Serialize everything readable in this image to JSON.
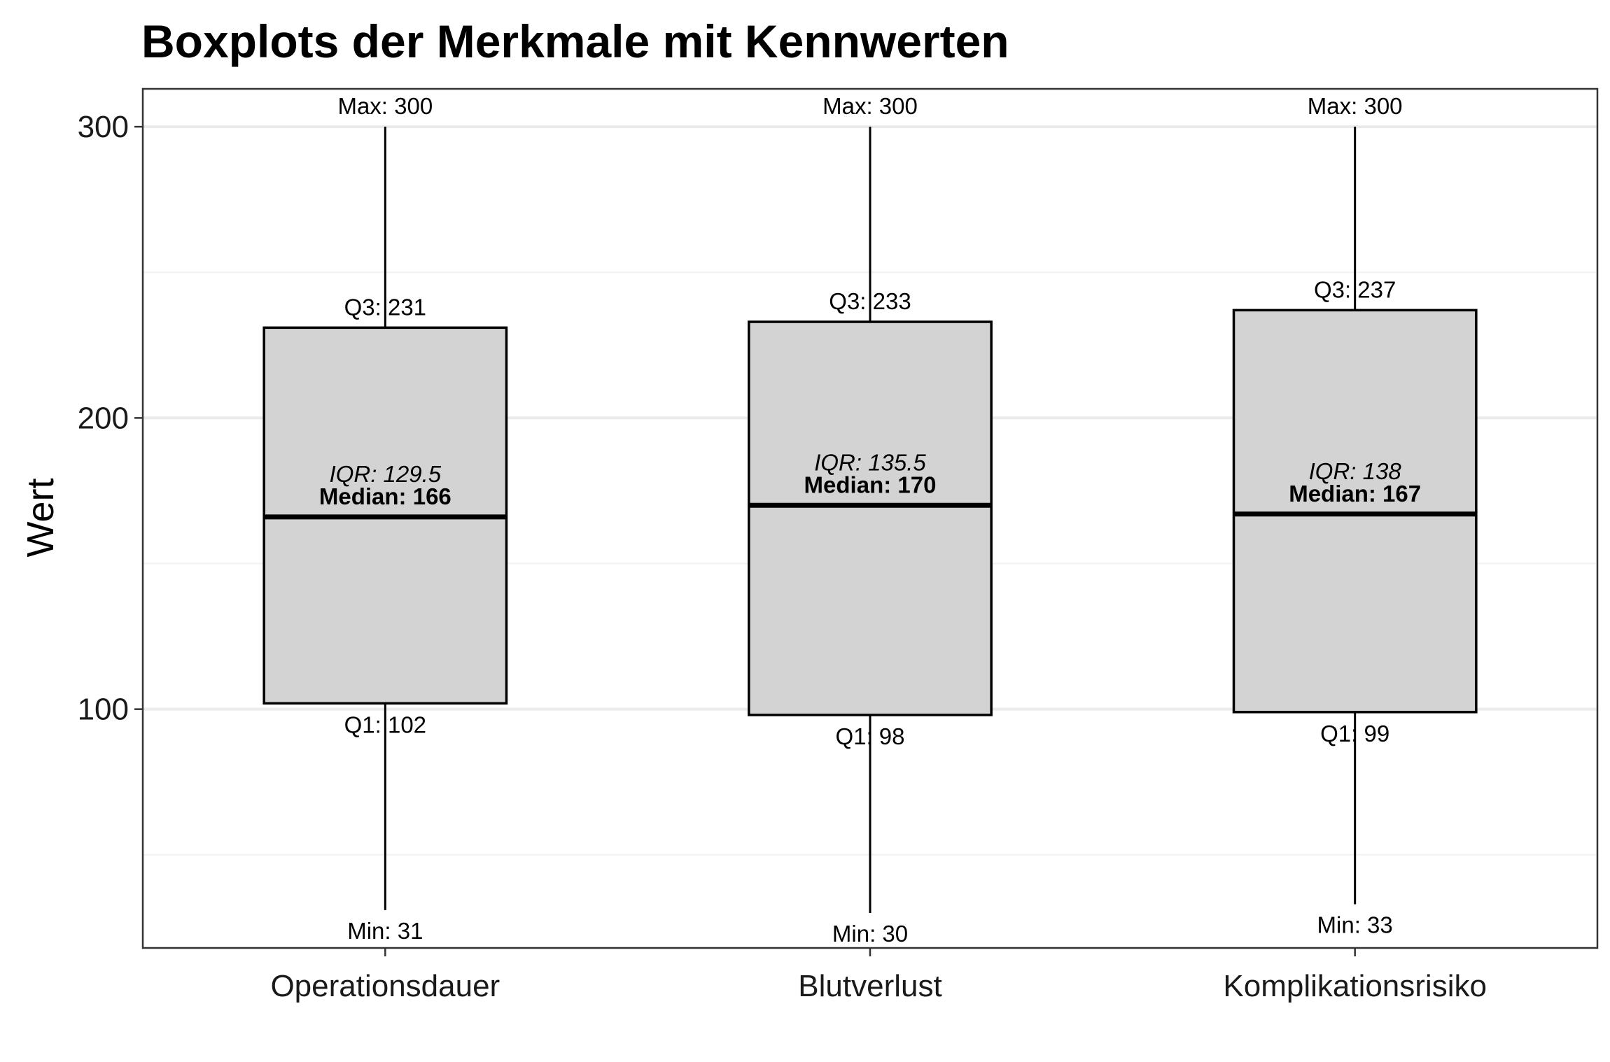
{
  "chart_data": {
    "type": "boxplot",
    "title": "Boxplots der Merkmale mit Kennwerten",
    "xlabel": "",
    "ylabel": "Wert",
    "ylim": [
      18,
      313
    ],
    "yticks": [
      100,
      200,
      300
    ],
    "ytick_labels": [
      "100",
      "200",
      "300"
    ],
    "minor_gridlines": [
      50,
      150,
      250
    ],
    "grid": true,
    "categories": [
      "Operationsdauer",
      "Blutverlust",
      "Komplikationsrisiko"
    ],
    "boxes": [
      {
        "category": "Operationsdauer",
        "min": 31,
        "q1": 102,
        "median": 166,
        "q3": 231,
        "max": 300,
        "iqr": 129.5,
        "labels": {
          "max": "Max: 300",
          "q3": "Q3: 231",
          "iqr": "IQR: 129.5",
          "median": "Median: 166",
          "q1": "Q1: 102",
          "min": "Min: 31"
        }
      },
      {
        "category": "Blutverlust",
        "min": 30,
        "q1": 98,
        "median": 170,
        "q3": 233,
        "max": 300,
        "iqr": 135.5,
        "labels": {
          "max": "Max: 300",
          "q3": "Q3: 233",
          "iqr": "IQR: 135.5",
          "median": "Median: 170",
          "q1": "Q1: 98",
          "min": "Min: 30"
        }
      },
      {
        "category": "Komplikationsrisiko",
        "min": 33,
        "q1": 99,
        "median": 167,
        "q3": 237,
        "max": 300,
        "iqr": 138,
        "labels": {
          "max": "Max: 300",
          "q3": "Q3: 237",
          "iqr": "IQR: 138",
          "median": "Median: 167",
          "q1": "Q1: 99",
          "min": "Min: 33"
        }
      }
    ],
    "colors": {
      "box_fill": "#d3d3d3",
      "box_stroke": "#000000",
      "grid_major": "#ebebeb",
      "grid_minor": "#f2f2f2",
      "panel_border": "#333333"
    }
  }
}
